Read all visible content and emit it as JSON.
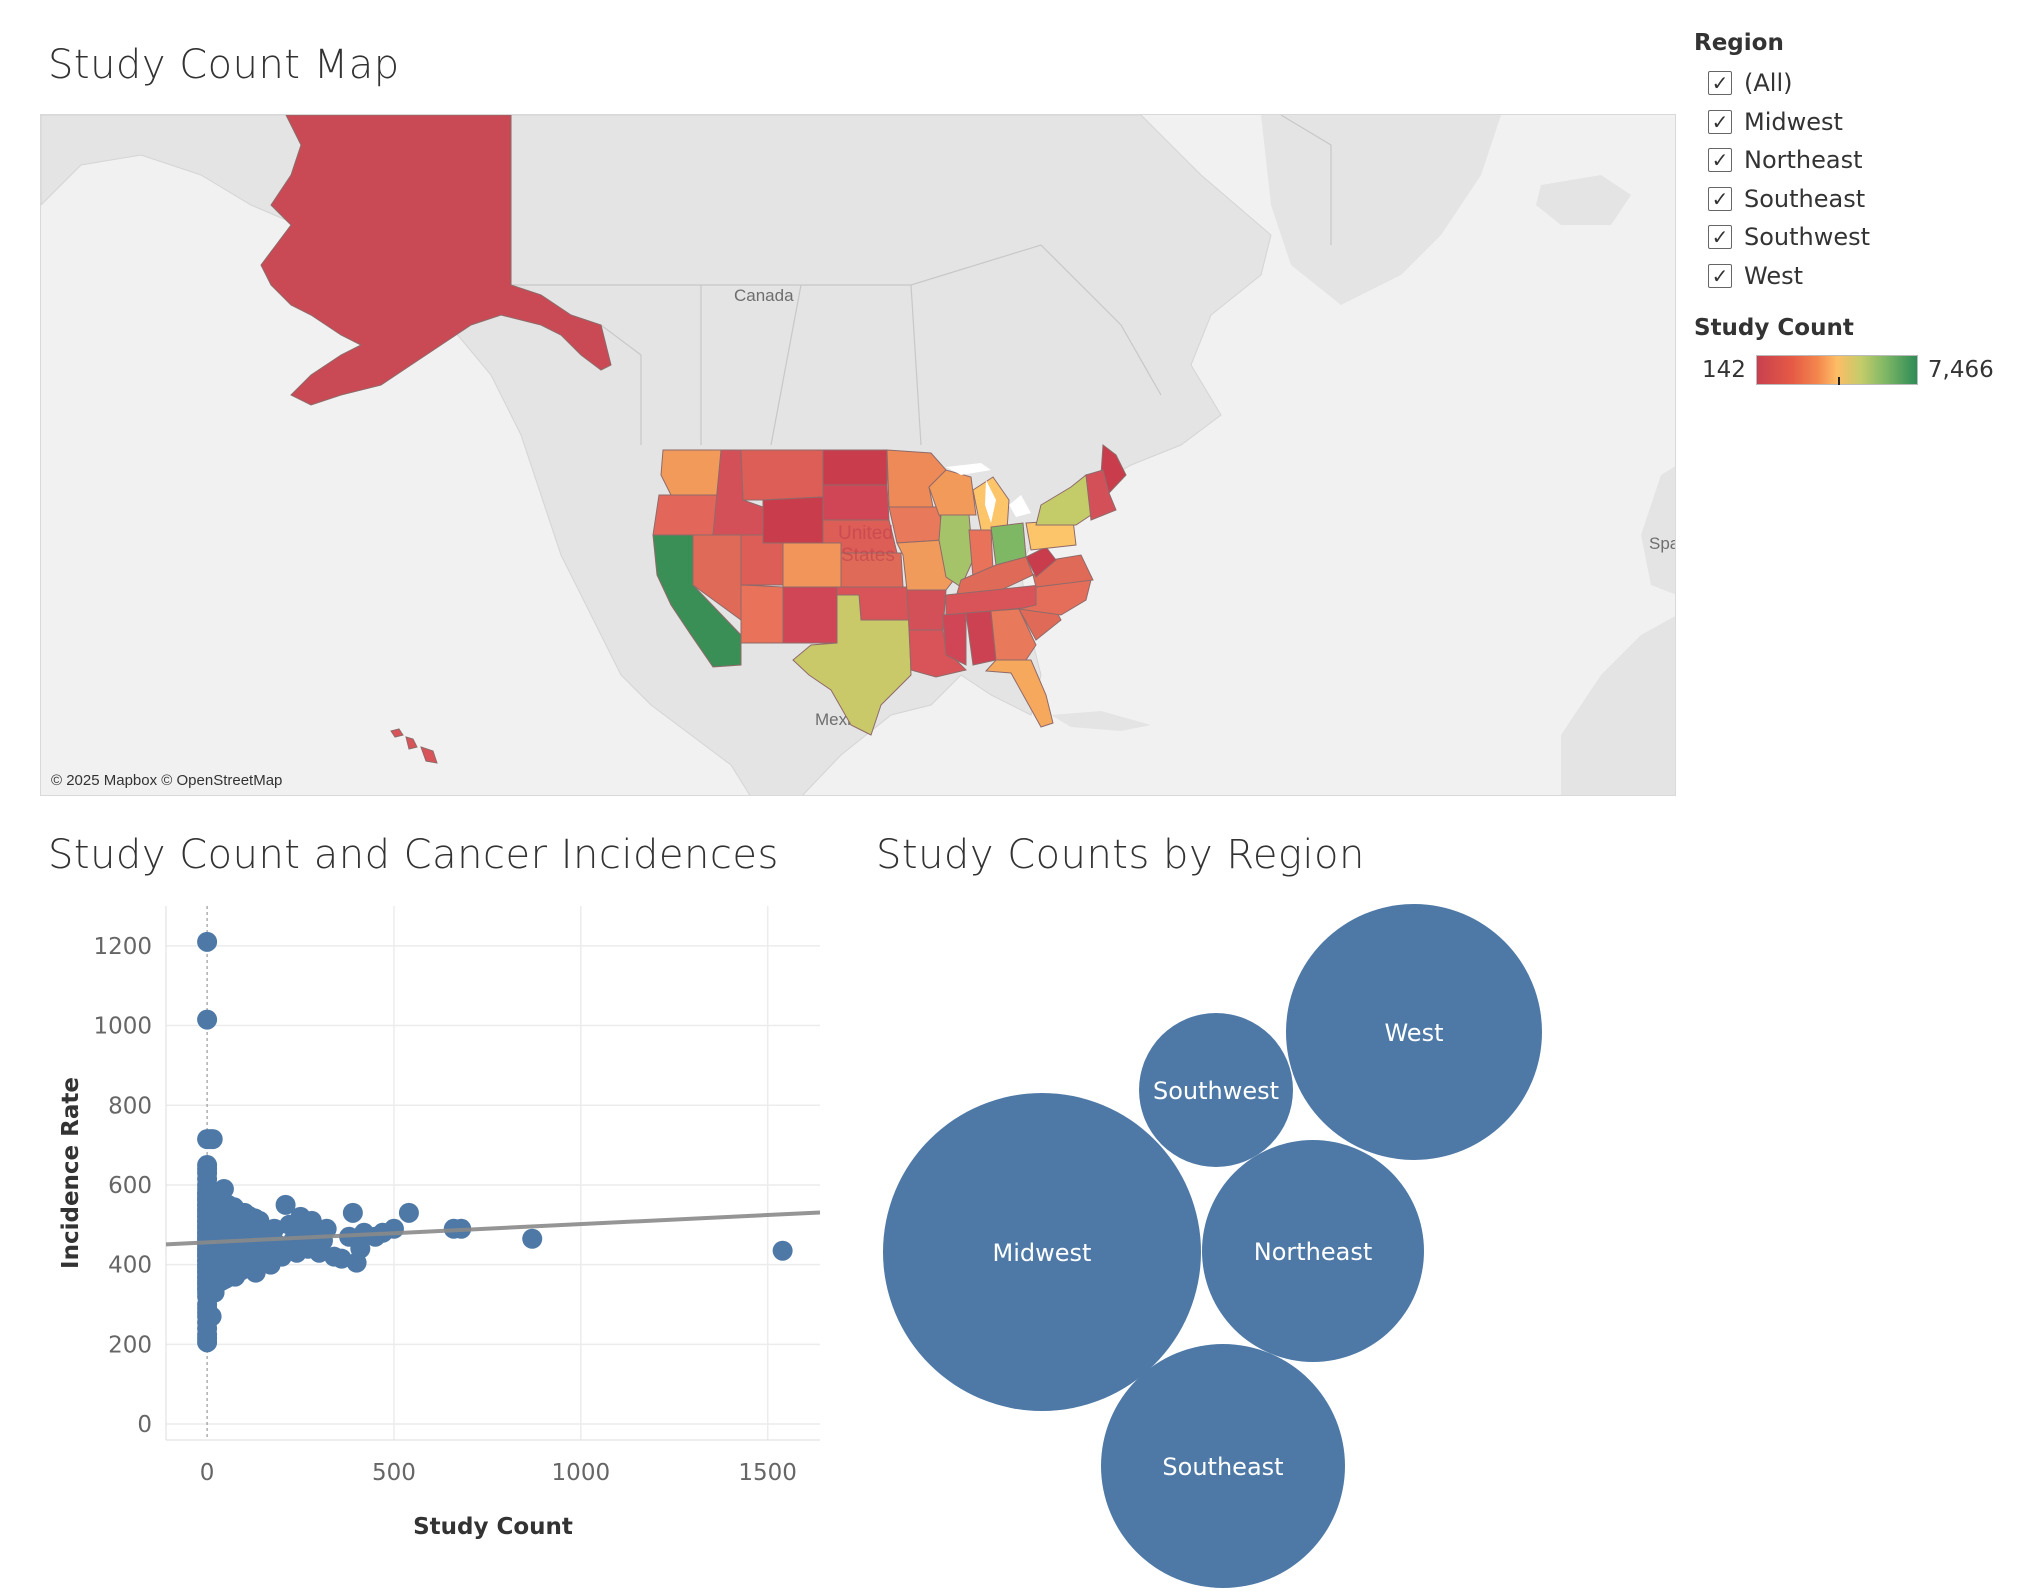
{
  "dashboard": {
    "map_title": "Study Count Map",
    "scatter_title": "Study Count and Cancer Incidences",
    "bubble_title": "Study Counts by Region"
  },
  "map": {
    "attribution": "© 2025 Mapbox © OpenStreetMap",
    "labels": {
      "canada": "Canada",
      "mexico": "Mexico",
      "us_line1": "United",
      "us_line2": "States",
      "spain": "Spa"
    },
    "colors": {
      "land": "#e4e4e4",
      "water": "#f1f1f1",
      "border": "#c8c8c8"
    },
    "states": [
      {
        "name": "Alaska",
        "color": "#c94a55"
      },
      {
        "name": "Washington",
        "color": "#f29a5a"
      },
      {
        "name": "Oregon",
        "color": "#e2675a"
      },
      {
        "name": "California",
        "color": "#3a8f56"
      },
      {
        "name": "Idaho",
        "color": "#d45059"
      },
      {
        "name": "Nevada",
        "color": "#e06a58"
      },
      {
        "name": "Montana",
        "color": "#dd5d57"
      },
      {
        "name": "Wyoming",
        "color": "#c93c4c"
      },
      {
        "name": "Utah",
        "color": "#dd5d57"
      },
      {
        "name": "Colorado",
        "color": "#f2955a"
      },
      {
        "name": "Arizona",
        "color": "#e8735a"
      },
      {
        "name": "New Mexico",
        "color": "#d04656"
      },
      {
        "name": "North Dakota",
        "color": "#c93c4c"
      },
      {
        "name": "South Dakota",
        "color": "#d04656"
      },
      {
        "name": "Nebraska",
        "color": "#dd5d57"
      },
      {
        "name": "Kansas",
        "color": "#e06a58"
      },
      {
        "name": "Oklahoma",
        "color": "#d85458"
      },
      {
        "name": "Texas",
        "color": "#c9c96a"
      },
      {
        "name": "Minnesota",
        "color": "#ee8a58"
      },
      {
        "name": "Iowa",
        "color": "#e8795a"
      },
      {
        "name": "Missouri",
        "color": "#f09a5b"
      },
      {
        "name": "Arkansas",
        "color": "#d45059"
      },
      {
        "name": "Louisiana",
        "color": "#d85458"
      },
      {
        "name": "Wisconsin",
        "color": "#f29a5a"
      },
      {
        "name": "Illinois",
        "color": "#a5c46a"
      },
      {
        "name": "Michigan",
        "color": "#fcc56a"
      },
      {
        "name": "Indiana",
        "color": "#e8735a"
      },
      {
        "name": "Ohio",
        "color": "#7fb865"
      },
      {
        "name": "Kentucky",
        "color": "#e06a58"
      },
      {
        "name": "Tennessee",
        "color": "#d85458"
      },
      {
        "name": "Mississippi",
        "color": "#d04656"
      },
      {
        "name": "Alabama",
        "color": "#cc4252"
      },
      {
        "name": "Georgia",
        "color": "#e8795a"
      },
      {
        "name": "Florida",
        "color": "#f6a85d"
      },
      {
        "name": "South Carolina",
        "color": "#e06a58"
      },
      {
        "name": "North Carolina",
        "color": "#e46e5a"
      },
      {
        "name": "Virginia",
        "color": "#e06a58"
      },
      {
        "name": "West Virginia",
        "color": "#c93c4c"
      },
      {
        "name": "Pennsylvania",
        "color": "#fcc56a"
      },
      {
        "name": "New York",
        "color": "#c4cc6a"
      },
      {
        "name": "Maine",
        "color": "#c93c4c"
      },
      {
        "name": "New England",
        "color": "#d45059"
      },
      {
        "name": "Hawaii",
        "color": "#d85458"
      }
    ]
  },
  "legend": {
    "region_title": "Region",
    "regions": [
      {
        "label": "(All)",
        "checked": true
      },
      {
        "label": "Midwest",
        "checked": true
      },
      {
        "label": "Northeast",
        "checked": true
      },
      {
        "label": "Southeast",
        "checked": true
      },
      {
        "label": "Southwest",
        "checked": true
      },
      {
        "label": "West",
        "checked": true
      }
    ],
    "check_glyph": "✓",
    "color_title": "Study Count",
    "color_min": "142",
    "color_max": "7,466"
  },
  "chart_data": [
    {
      "type": "scatter",
      "xlabel": "Study Count",
      "ylabel": "Incidence Rate",
      "xlim": [
        -110,
        1640
      ],
      "ylim": [
        -40,
        1300
      ],
      "x_ticks": [
        0,
        500,
        1000,
        1500
      ],
      "y_ticks": [
        0,
        200,
        400,
        600,
        800,
        1000,
        1200
      ],
      "point_color": "#4e79a7",
      "trend_line": {
        "x": [
          -110,
          1640
        ],
        "y": [
          451,
          531
        ],
        "color": "#8a8a8a"
      },
      "series": [
        {
          "points": [
            [
              0,
              1210
            ],
            [
              0,
              1015
            ],
            [
              0,
              715
            ],
            [
              8,
              715
            ],
            [
              15,
              715
            ],
            [
              0,
              650
            ],
            [
              0,
              640
            ],
            [
              0,
              630
            ],
            [
              0,
              615
            ],
            [
              0,
              600
            ],
            [
              0,
              590
            ],
            [
              0,
              580
            ],
            [
              0,
              570
            ],
            [
              0,
              560
            ],
            [
              0,
              550
            ],
            [
              0,
              540
            ],
            [
              0,
              530
            ],
            [
              0,
              520
            ],
            [
              0,
              510
            ],
            [
              0,
              500
            ],
            [
              0,
              490
            ],
            [
              0,
              480
            ],
            [
              0,
              470
            ],
            [
              0,
              460
            ],
            [
              0,
              450
            ],
            [
              0,
              440
            ],
            [
              0,
              430
            ],
            [
              0,
              420
            ],
            [
              0,
              410
            ],
            [
              0,
              400
            ],
            [
              0,
              390
            ],
            [
              0,
              380
            ],
            [
              0,
              370
            ],
            [
              0,
              360
            ],
            [
              0,
              350
            ],
            [
              0,
              340
            ],
            [
              0,
              330
            ],
            [
              0,
              320
            ],
            [
              0,
              300
            ],
            [
              0,
              290
            ],
            [
              0,
              280
            ],
            [
              0,
              270
            ],
            [
              0,
              255
            ],
            [
              0,
              240
            ],
            [
              0,
              225
            ],
            [
              0,
              215
            ],
            [
              0,
              205
            ],
            [
              12,
              270
            ],
            [
              20,
              330
            ],
            [
              25,
              390
            ],
            [
              30,
              420
            ],
            [
              35,
              460
            ],
            [
              40,
              500
            ],
            [
              45,
              590
            ],
            [
              50,
              550
            ],
            [
              55,
              520
            ],
            [
              60,
              480
            ],
            [
              65,
              440
            ],
            [
              70,
              400
            ],
            [
              75,
              370
            ],
            [
              80,
              510
            ],
            [
              85,
              470
            ],
            [
              90,
              430
            ],
            [
              95,
              395
            ],
            [
              100,
              530
            ],
            [
              110,
              500
            ],
            [
              120,
              460
            ],
            [
              125,
              420
            ],
            [
              130,
              380
            ],
            [
              140,
              510
            ],
            [
              150,
              470
            ],
            [
              160,
              430
            ],
            [
              170,
              400
            ],
            [
              180,
              490
            ],
            [
              190,
              450
            ],
            [
              200,
              420
            ],
            [
              210,
              550
            ],
            [
              220,
              500
            ],
            [
              230,
              460
            ],
            [
              240,
              430
            ],
            [
              250,
              520
            ],
            [
              260,
              480
            ],
            [
              270,
              440
            ],
            [
              280,
              510
            ],
            [
              290,
              470
            ],
            [
              300,
              430
            ],
            [
              310,
              460
            ],
            [
              320,
              490
            ],
            [
              340,
              420
            ],
            [
              360,
              415
            ],
            [
              380,
              470
            ],
            [
              390,
              530
            ],
            [
              400,
              405
            ],
            [
              410,
              440
            ],
            [
              420,
              480
            ],
            [
              450,
              470
            ],
            [
              470,
              480
            ],
            [
              500,
              490
            ],
            [
              540,
              530
            ],
            [
              660,
              490
            ],
            [
              680,
              490
            ],
            [
              870,
              465
            ],
            [
              1540,
              435
            ]
          ]
        }
      ]
    },
    {
      "type": "bubble",
      "bubble_color": "#4e79a7",
      "label_color": "#ffffff",
      "series": [
        {
          "name": "West",
          "value": 1270,
          "r": 128,
          "cx": 1414,
          "cy": 1032
        },
        {
          "name": "Southwest",
          "value": 400,
          "r": 77,
          "cx": 1216,
          "cy": 1090
        },
        {
          "name": "Midwest",
          "value": 1955,
          "r": 159,
          "cx": 1042,
          "cy": 1252
        },
        {
          "name": "Northeast",
          "value": 940,
          "r": 111,
          "cx": 1313,
          "cy": 1251
        },
        {
          "name": "Southeast",
          "value": 1140,
          "r": 122,
          "cx": 1223,
          "cy": 1466
        }
      ]
    }
  ]
}
